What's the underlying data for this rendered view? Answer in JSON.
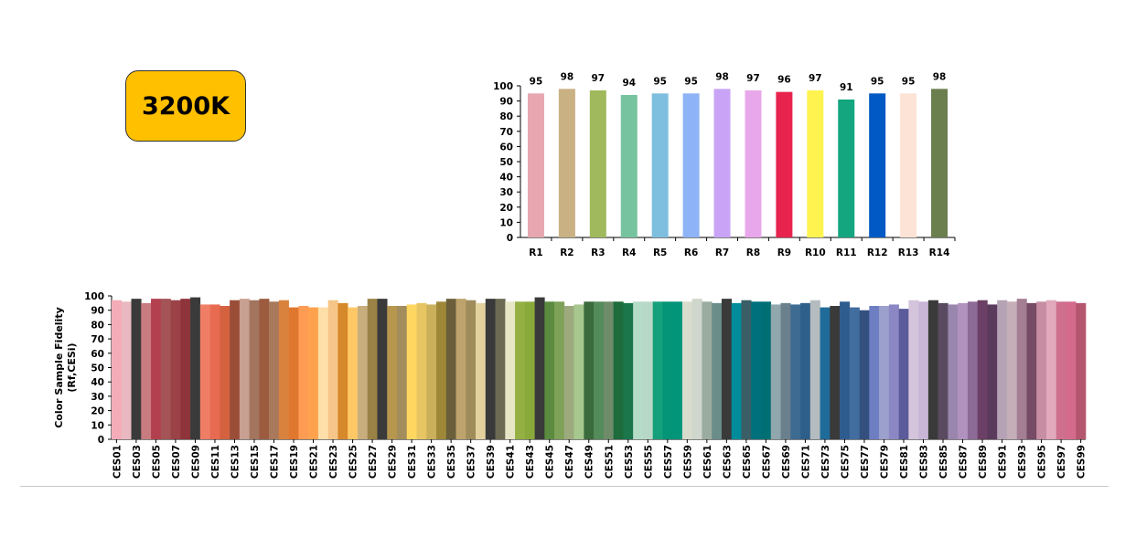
{
  "badge": {
    "label": "3200K",
    "color": "#ffc000"
  },
  "chart_data": [
    {
      "type": "bar",
      "categories": [
        "R1",
        "R2",
        "R3",
        "R4",
        "R5",
        "R6",
        "R7",
        "R8",
        "R9",
        "R10",
        "R11",
        "R12",
        "R13",
        "R14"
      ],
      "values": [
        95,
        98,
        97,
        94,
        95,
        95,
        98,
        97,
        96,
        97,
        91,
        95,
        95,
        98
      ],
      "data_labels": [
        "95",
        "98",
        "97",
        "94",
        "95",
        "95",
        "98",
        "97",
        "96",
        "97",
        "91",
        "95",
        "95",
        "98"
      ],
      "colors": [
        "#e6a7b1",
        "#c9b184",
        "#a0b95c",
        "#75c39f",
        "#7ebedf",
        "#8fb3f7",
        "#c9a4f6",
        "#e8a7ea",
        "#e8234e",
        "#fff350",
        "#13a67f",
        "#0059c4",
        "#fde3d6",
        "#6b7e4e"
      ],
      "ylim": [
        0,
        100
      ],
      "yticks": [
        0,
        10,
        20,
        30,
        40,
        50,
        60,
        70,
        80,
        90,
        100
      ],
      "xlabel": "",
      "ylabel": "",
      "title": ""
    },
    {
      "type": "bar",
      "categories": [
        "CES01",
        "CES02",
        "CES03",
        "CES04",
        "CES05",
        "CES06",
        "CES07",
        "CES08",
        "CES09",
        "CES10",
        "CES11",
        "CES12",
        "CES13",
        "CES14",
        "CES15",
        "CES16",
        "CES17",
        "CES18",
        "CES19",
        "CES20",
        "CES21",
        "CES22",
        "CES23",
        "CES24",
        "CES25",
        "CES26",
        "CES27",
        "CES28",
        "CES29",
        "CES30",
        "CES31",
        "CES32",
        "CES33",
        "CES34",
        "CES35",
        "CES36",
        "CES37",
        "CES38",
        "CES39",
        "CES40",
        "CES41",
        "CES42",
        "CES43",
        "CES44",
        "CES45",
        "CES46",
        "CES47",
        "CES48",
        "CES49",
        "CES50",
        "CES51",
        "CES52",
        "CES53",
        "CES54",
        "CES55",
        "CES56",
        "CES57",
        "CES58",
        "CES59",
        "CES60",
        "CES61",
        "CES62",
        "CES63",
        "CES64",
        "CES65",
        "CES66",
        "CES67",
        "CES68",
        "CES69",
        "CES70",
        "CES71",
        "CES72",
        "CES73",
        "CES74",
        "CES75",
        "CES76",
        "CES77",
        "CES78",
        "CES79",
        "CES80",
        "CES81",
        "CES82",
        "CES83",
        "CES84",
        "CES85",
        "CES86",
        "CES87",
        "CES88",
        "CES89",
        "CES90",
        "CES91",
        "CES92",
        "CES93",
        "CES94",
        "CES95",
        "CES96",
        "CES97",
        "CES98",
        "CES99"
      ],
      "tick_labels_shown": [
        "CES01",
        "CES03",
        "CES05",
        "CES07",
        "CES09",
        "CES11",
        "CES13",
        "CES15",
        "CES17",
        "CES19",
        "CES21",
        "CES23",
        "CES25",
        "CES27",
        "CES29",
        "CES31",
        "CES33",
        "CES35",
        "CES37",
        "CES39",
        "CES41",
        "CES43",
        "CES45",
        "CES47",
        "CES49",
        "CES51",
        "CES53",
        "CES55",
        "CES57",
        "CES59",
        "CES61",
        "CES63",
        "CES65",
        "CES67",
        "CES69",
        "CES71",
        "CES73",
        "CES75",
        "CES77",
        "CES79",
        "CES81",
        "CES83",
        "CES85",
        "CES87",
        "CES89",
        "CES91",
        "CES93",
        "CES95",
        "CES97",
        "CES99"
      ],
      "values": [
        97,
        96,
        98,
        95,
        98,
        98,
        97,
        98,
        99,
        94,
        94,
        93,
        97,
        98,
        97,
        98,
        96,
        97,
        92,
        93,
        92,
        92,
        97,
        95,
        92,
        93,
        98,
        98,
        93,
        93,
        94,
        95,
        94,
        96,
        98,
        98,
        97,
        95,
        98,
        98,
        96,
        96,
        96,
        99,
        96,
        96,
        93,
        94,
        96,
        96,
        96,
        96,
        95,
        96,
        96,
        96,
        96,
        96,
        96,
        98,
        96,
        95,
        98,
        95,
        97,
        96,
        96,
        94,
        95,
        94,
        95,
        97,
        92,
        93,
        96,
        92,
        90,
        93,
        93,
        94,
        91,
        97,
        96,
        97,
        95,
        94,
        95,
        96,
        97,
        94,
        97,
        96,
        98,
        95,
        96,
        97,
        96,
        96,
        95
      ],
      "colors": [
        "#f4adb8",
        "#e9b8c0",
        "#3a3a3a",
        "#c87c80",
        "#b2404f",
        "#a45356",
        "#9a4246",
        "#8f343b",
        "#3a3a3a",
        "#f07d66",
        "#e76b51",
        "#d4623f",
        "#9a4e38",
        "#c8a092",
        "#a3755f",
        "#9c5b3f",
        "#a8795b",
        "#d9823e",
        "#e0772e",
        "#ff9b52",
        "#ffa24e",
        "#ffdfa9",
        "#f5c688",
        "#d6892a",
        "#ffc867",
        "#c8ae7d",
        "#9a8145",
        "#3a3a3a",
        "#b7974e",
        "#a38d5c",
        "#ffd760",
        "#e7c562",
        "#cbb05c",
        "#9e8838",
        "#6a5f3a",
        "#bea46c",
        "#a08c5b",
        "#e3d29e",
        "#3a3a3a",
        "#6c6a52",
        "#e6e5c5",
        "#94b043",
        "#8aa93b",
        "#3a3a3a",
        "#5b8b3f",
        "#7fa158",
        "#9daa7e",
        "#a6c88e",
        "#3a6b3c",
        "#548b5b",
        "#6e8c6a",
        "#1e6b3c",
        "#1b774b",
        "#b5dcc7",
        "#b8d8c7",
        "#14a07b",
        "#049477",
        "#03957a",
        "#d7dccc",
        "#cfd6cc",
        "#9aab9f",
        "#6a8d8a",
        "#3a3a3a",
        "#008c9a",
        "#3a5f66",
        "#00707c",
        "#006f74",
        "#8fa7ad",
        "#6a808c",
        "#3e6b91",
        "#2e5f8a",
        "#b5bcbf",
        "#1f6b99",
        "#3a3a3a",
        "#2f5c8f",
        "#416d9f",
        "#33507f",
        "#6e7ec2",
        "#9ba0cc",
        "#8a87c4",
        "#5b5b9b",
        "#d5c5dc",
        "#c9b5d6",
        "#3a3a3a",
        "#5a4a60",
        "#9a86ad",
        "#b192bf",
        "#8c6b96",
        "#6c3f66",
        "#5a3a5d",
        "#b5a3b5",
        "#c6aeb9",
        "#a47f93",
        "#764b66",
        "#c78ea3",
        "#e1a9bb",
        "#cf6f8e",
        "#d46b8c",
        "#b5566f"
      ],
      "ylim": [
        0,
        100
      ],
      "yticks": [
        0,
        10,
        20,
        30,
        40,
        50,
        60,
        70,
        80,
        90,
        100
      ],
      "ylabel": "Color Sample Fidelity",
      "ylabel2": "(Rf,CESi)",
      "xlabel": "",
      "title": ""
    }
  ]
}
